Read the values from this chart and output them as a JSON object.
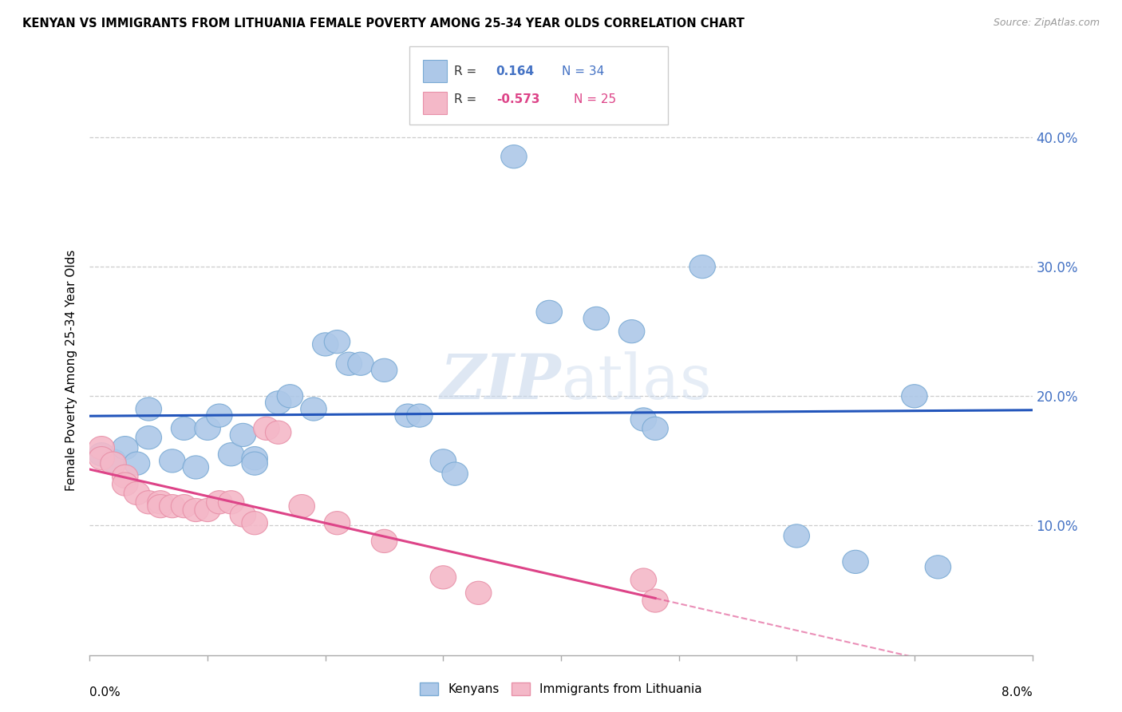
{
  "title": "KENYAN VS IMMIGRANTS FROM LITHUANIA FEMALE POVERTY AMONG 25-34 YEAR OLDS CORRELATION CHART",
  "source": "Source: ZipAtlas.com",
  "ylabel": "Female Poverty Among 25-34 Year Olds",
  "yticks": [
    0.1,
    0.2,
    0.3,
    0.4
  ],
  "watermark_zip": "ZIP",
  "watermark_atlas": "atlas",
  "kenyan_color": "#adc8e8",
  "kenyan_edge": "#7aaad4",
  "lithuania_color": "#f4b8c8",
  "lithuania_edge": "#e890a8",
  "blue_line_color": "#2255bb",
  "pink_line_color": "#dd4488",
  "kenyan_scatter": [
    [
      0.001,
      0.155
    ],
    [
      0.002,
      0.15
    ],
    [
      0.003,
      0.16
    ],
    [
      0.004,
      0.148
    ],
    [
      0.005,
      0.168
    ],
    [
      0.005,
      0.19
    ],
    [
      0.007,
      0.15
    ],
    [
      0.008,
      0.175
    ],
    [
      0.009,
      0.145
    ],
    [
      0.01,
      0.175
    ],
    [
      0.011,
      0.185
    ],
    [
      0.012,
      0.155
    ],
    [
      0.013,
      0.17
    ],
    [
      0.014,
      0.152
    ],
    [
      0.014,
      0.148
    ],
    [
      0.016,
      0.195
    ],
    [
      0.017,
      0.2
    ],
    [
      0.019,
      0.19
    ],
    [
      0.02,
      0.24
    ],
    [
      0.021,
      0.242
    ],
    [
      0.022,
      0.225
    ],
    [
      0.023,
      0.225
    ],
    [
      0.025,
      0.22
    ],
    [
      0.027,
      0.185
    ],
    [
      0.028,
      0.185
    ],
    [
      0.03,
      0.15
    ],
    [
      0.031,
      0.14
    ],
    [
      0.036,
      0.385
    ],
    [
      0.039,
      0.265
    ],
    [
      0.043,
      0.26
    ],
    [
      0.046,
      0.25
    ],
    [
      0.047,
      0.182
    ],
    [
      0.048,
      0.175
    ],
    [
      0.052,
      0.3
    ],
    [
      0.06,
      0.092
    ],
    [
      0.065,
      0.072
    ],
    [
      0.07,
      0.2
    ],
    [
      0.072,
      0.068
    ]
  ],
  "lithuania_scatter": [
    [
      0.001,
      0.16
    ],
    [
      0.001,
      0.152
    ],
    [
      0.002,
      0.148
    ],
    [
      0.003,
      0.138
    ],
    [
      0.003,
      0.132
    ],
    [
      0.004,
      0.125
    ],
    [
      0.005,
      0.118
    ],
    [
      0.006,
      0.118
    ],
    [
      0.006,
      0.115
    ],
    [
      0.007,
      0.115
    ],
    [
      0.008,
      0.115
    ],
    [
      0.009,
      0.112
    ],
    [
      0.01,
      0.112
    ],
    [
      0.011,
      0.118
    ],
    [
      0.012,
      0.118
    ],
    [
      0.013,
      0.108
    ],
    [
      0.014,
      0.102
    ],
    [
      0.015,
      0.175
    ],
    [
      0.016,
      0.172
    ],
    [
      0.018,
      0.115
    ],
    [
      0.021,
      0.102
    ],
    [
      0.025,
      0.088
    ],
    [
      0.03,
      0.06
    ],
    [
      0.033,
      0.048
    ],
    [
      0.047,
      0.058
    ],
    [
      0.048,
      0.042
    ]
  ],
  "xmin": 0.0,
  "xmax": 0.08,
  "ymin": 0.0,
  "ymax": 0.44
}
